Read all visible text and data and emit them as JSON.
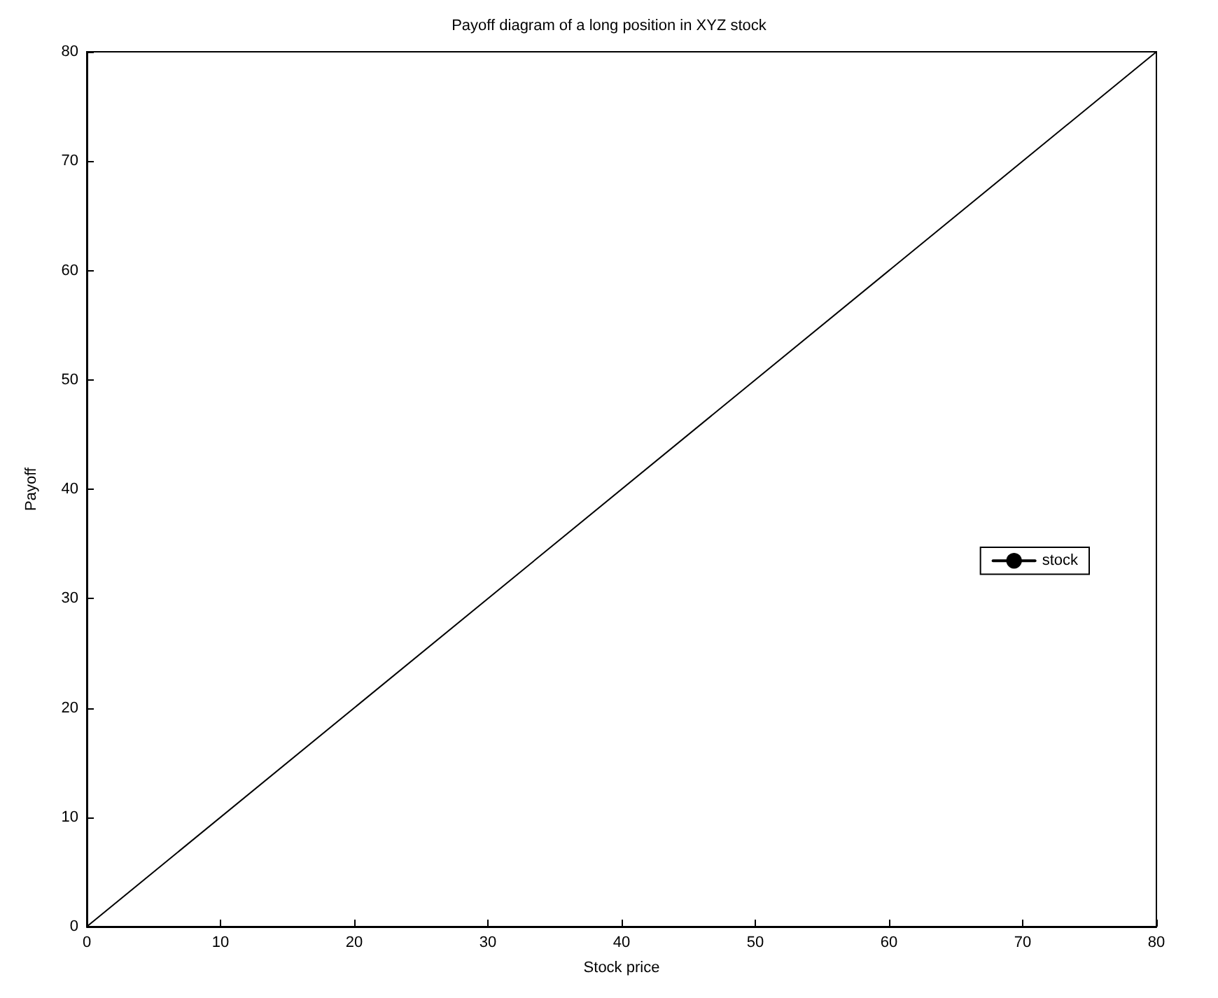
{
  "chart_data": {
    "type": "line",
    "title": "Payoff diagram of a long position in XYZ stock",
    "xlabel": "Stock price",
    "ylabel": "Payoff",
    "x": [
      0,
      80
    ],
    "series": [
      {
        "name": "stock",
        "color": "#000000",
        "values": [
          0,
          80
        ]
      }
    ],
    "xlim": [
      0,
      80
    ],
    "xticks": [
      0,
      10,
      20,
      30,
      40,
      50,
      60,
      70,
      80
    ],
    "ylim": [
      0,
      80
    ],
    "yticks": [
      0,
      10,
      20,
      30,
      40,
      50,
      60,
      70,
      80
    ],
    "grid": false,
    "legend": "right",
    "marker": "none",
    "line_style": "solid"
  }
}
